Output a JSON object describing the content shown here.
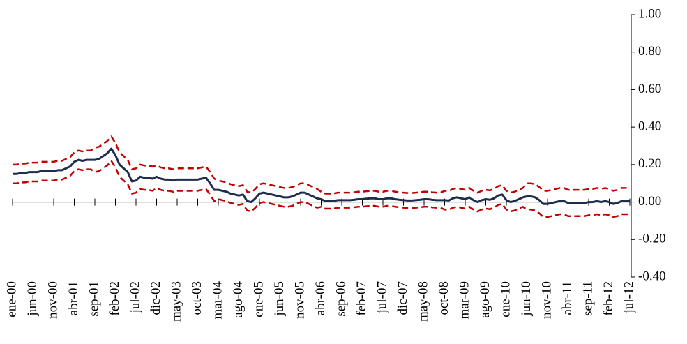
{
  "chart_data": {
    "type": "line",
    "categories": [
      "ene-00",
      null,
      null,
      null,
      null,
      "jun-00",
      null,
      null,
      null,
      null,
      "nov-00",
      null,
      null,
      null,
      null,
      "abr-01",
      null,
      null,
      null,
      null,
      "sep-01",
      null,
      null,
      null,
      null,
      "feb-02",
      null,
      null,
      null,
      null,
      "jul-02",
      null,
      null,
      null,
      null,
      "dic-02",
      null,
      null,
      null,
      null,
      "may-03",
      null,
      null,
      null,
      null,
      "oct-03",
      null,
      null,
      null,
      null,
      "mar-04",
      null,
      null,
      null,
      null,
      "ago-04",
      null,
      null,
      null,
      null,
      "ene-05",
      null,
      null,
      null,
      null,
      "jun-05",
      null,
      null,
      null,
      null,
      "nov-05",
      null,
      null,
      null,
      null,
      "abr-06",
      null,
      null,
      null,
      null,
      "sep-06",
      null,
      null,
      null,
      null,
      "feb-07",
      null,
      null,
      null,
      null,
      "jul-07",
      null,
      null,
      null,
      null,
      "dic-07",
      null,
      null,
      null,
      null,
      "may-08",
      null,
      null,
      null,
      null,
      "oct-08",
      null,
      null,
      null,
      null,
      "mar-09",
      null,
      null,
      null,
      null,
      "ago-09",
      null,
      null,
      null,
      null,
      "ene-10",
      null,
      null,
      null,
      null,
      "jun-10",
      null,
      null,
      null,
      null,
      "nov-10",
      null,
      null,
      null,
      null,
      "abr-11",
      null,
      null,
      null,
      null,
      "sep-11",
      null,
      null,
      null,
      null,
      "feb-12",
      null,
      null,
      null,
      null,
      "jul-12"
    ],
    "series": [
      {
        "color": "#1f2d4d",
        "dash": false,
        "values": [
          0.15,
          0.15,
          0.155,
          0.155,
          0.16,
          0.16,
          0.16,
          0.165,
          0.165,
          0.165,
          0.165,
          0.17,
          0.17,
          0.18,
          0.19,
          0.215,
          0.225,
          0.22,
          0.225,
          0.225,
          0.225,
          0.23,
          0.245,
          0.26,
          0.285,
          0.25,
          0.2,
          0.18,
          0.16,
          0.11,
          0.115,
          0.135,
          0.13,
          0.13,
          0.125,
          0.135,
          0.125,
          0.12,
          0.12,
          0.115,
          0.12,
          0.12,
          0.12,
          0.12,
          0.12,
          0.12,
          0.125,
          0.13,
          0.1,
          0.065,
          0.065,
          0.06,
          0.055,
          0.045,
          0.04,
          0.035,
          0.04,
          0.005,
          0,
          0.02,
          0.045,
          0.05,
          0.045,
          0.04,
          0.035,
          0.03,
          0.025,
          0.025,
          0.03,
          0.04,
          0.05,
          0.05,
          0.04,
          0.03,
          0.02,
          0.015,
          0.005,
          0.005,
          0.005,
          0.01,
          0.01,
          0.01,
          0.01,
          0.012,
          0.015,
          0.015,
          0.018,
          0.02,
          0.02,
          0.015,
          0.015,
          0.02,
          0.02,
          0.015,
          0.012,
          0.01,
          0.008,
          0.008,
          0.01,
          0.012,
          0.015,
          0.015,
          0.012,
          0.01,
          0.01,
          0.01,
          0.008,
          0.02,
          0.025,
          0.02,
          0.015,
          0.025,
          0.01,
          0,
          0.01,
          0.015,
          0.012,
          0.02,
          0.035,
          0.04,
          0.01,
          0,
          0.005,
          0.015,
          0.025,
          0.03,
          0.03,
          0.025,
          0.01,
          -0.01,
          -0.01,
          -0.005,
          0,
          0.005,
          0.005,
          -0.005,
          -0.005,
          -0.005,
          -0.005,
          -0.005,
          0,
          0,
          0.005,
          0,
          0.005,
          0,
          -0.01,
          -0.005,
          0.005,
          0.005,
          0.005
        ]
      },
      {
        "color": "#c00000",
        "dash": true,
        "values": [
          0.2,
          0.2,
          0.205,
          0.205,
          0.21,
          0.21,
          0.21,
          0.215,
          0.215,
          0.215,
          0.215,
          0.22,
          0.22,
          0.23,
          0.24,
          0.265,
          0.275,
          0.27,
          0.275,
          0.275,
          0.29,
          0.295,
          0.31,
          0.325,
          0.35,
          0.315,
          0.265,
          0.245,
          0.225,
          0.175,
          0.18,
          0.2,
          0.195,
          0.195,
          0.19,
          0.195,
          0.185,
          0.18,
          0.18,
          0.175,
          0.18,
          0.18,
          0.18,
          0.18,
          0.18,
          0.18,
          0.185,
          0.19,
          0.16,
          0.125,
          0.115,
          0.11,
          0.105,
          0.095,
          0.09,
          0.085,
          0.09,
          0.055,
          0.05,
          0.07,
          0.095,
          0.1,
          0.095,
          0.09,
          0.085,
          0.08,
          0.075,
          0.075,
          0.08,
          0.09,
          0.1,
          0.1,
          0.09,
          0.08,
          0.07,
          0.055,
          0.045,
          0.045,
          0.045,
          0.05,
          0.05,
          0.05,
          0.05,
          0.052,
          0.055,
          0.055,
          0.058,
          0.06,
          0.06,
          0.055,
          0.055,
          0.06,
          0.06,
          0.055,
          0.052,
          0.05,
          0.048,
          0.048,
          0.05,
          0.052,
          0.055,
          0.055,
          0.052,
          0.05,
          0.05,
          0.06,
          0.058,
          0.07,
          0.075,
          0.07,
          0.065,
          0.075,
          0.06,
          0.05,
          0.06,
          0.065,
          0.062,
          0.07,
          0.085,
          0.09,
          0.06,
          0.05,
          0.055,
          0.065,
          0.075,
          0.1,
          0.1,
          0.095,
          0.08,
          0.06,
          0.06,
          0.065,
          0.07,
          0.075,
          0.075,
          0.065,
          0.065,
          0.065,
          0.065,
          0.065,
          0.07,
          0.07,
          0.075,
          0.07,
          0.075,
          0.07,
          0.06,
          0.065,
          0.075,
          0.075,
          0.075
        ]
      },
      {
        "color": "#c00000",
        "dash": true,
        "values": [
          0.1,
          0.1,
          0.105,
          0.105,
          0.11,
          0.11,
          0.11,
          0.115,
          0.115,
          0.115,
          0.115,
          0.12,
          0.12,
          0.13,
          0.14,
          0.165,
          0.175,
          0.17,
          0.175,
          0.175,
          0.16,
          0.165,
          0.18,
          0.195,
          0.22,
          0.185,
          0.135,
          0.115,
          0.095,
          0.045,
          0.05,
          0.07,
          0.065,
          0.065,
          0.06,
          0.075,
          0.065,
          0.06,
          0.06,
          0.055,
          0.06,
          0.06,
          0.06,
          0.06,
          0.06,
          0.06,
          0.065,
          0.07,
          0.04,
          0.005,
          0.015,
          0.01,
          0.005,
          -0.005,
          -0.01,
          -0.015,
          -0.01,
          -0.045,
          -0.05,
          -0.03,
          -0.005,
          0,
          -0.005,
          -0.01,
          -0.015,
          -0.02,
          -0.025,
          -0.025,
          -0.02,
          -0.01,
          0,
          0,
          -0.01,
          -0.02,
          -0.03,
          -0.025,
          -0.035,
          -0.035,
          -0.035,
          -0.03,
          -0.03,
          -0.03,
          -0.03,
          -0.028,
          -0.025,
          -0.025,
          -0.022,
          -0.02,
          -0.02,
          -0.025,
          -0.025,
          -0.02,
          -0.02,
          -0.025,
          -0.028,
          -0.03,
          -0.032,
          -0.032,
          -0.03,
          -0.028,
          -0.025,
          -0.025,
          -0.028,
          -0.03,
          -0.03,
          -0.04,
          -0.042,
          -0.03,
          -0.025,
          -0.03,
          -0.035,
          -0.025,
          -0.04,
          -0.05,
          -0.04,
          -0.035,
          -0.038,
          -0.03,
          -0.015,
          -0.01,
          -0.04,
          -0.05,
          -0.045,
          -0.035,
          -0.025,
          -0.04,
          -0.04,
          -0.045,
          -0.06,
          -0.08,
          -0.08,
          -0.075,
          -0.07,
          -0.065,
          -0.065,
          -0.075,
          -0.075,
          -0.075,
          -0.075,
          -0.075,
          -0.07,
          -0.07,
          -0.065,
          -0.07,
          -0.065,
          -0.07,
          -0.08,
          -0.075,
          -0.065,
          -0.065,
          -0.065
        ]
      }
    ],
    "ylim": [
      -0.4,
      1
    ],
    "yticks": [
      {
        "value": -0.4,
        "label": "-0.40"
      },
      {
        "value": -0.2,
        "label": "-0.20"
      },
      {
        "value": 0,
        "label": "0.00"
      },
      {
        "value": 0.2,
        "label": "0.20"
      },
      {
        "value": 0.4,
        "label": "0.40"
      },
      {
        "value": 0.6,
        "label": "0.60"
      },
      {
        "value": 0.8,
        "label": "0.80"
      },
      {
        "value": 1,
        "label": "1.00"
      }
    ],
    "grid": false
  }
}
